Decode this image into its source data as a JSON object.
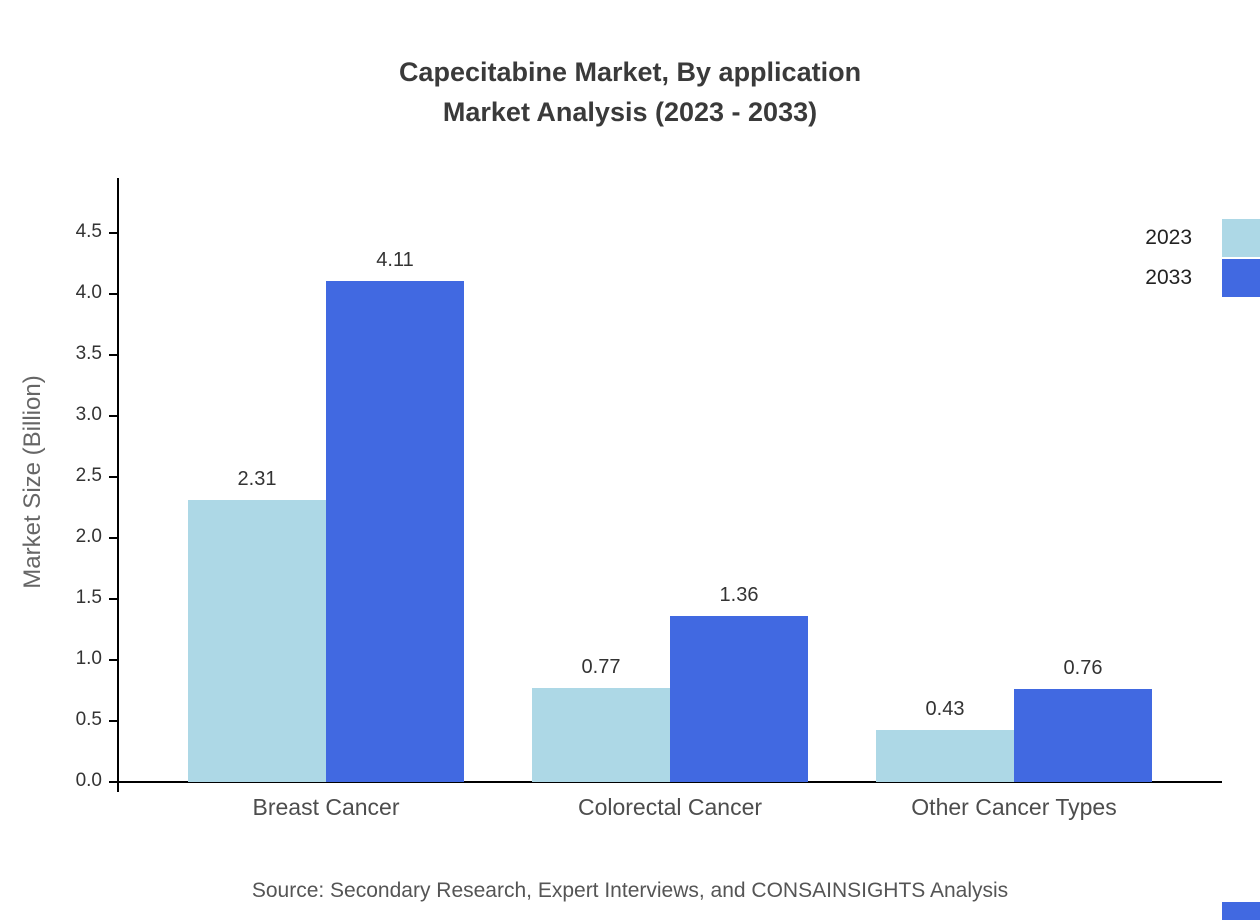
{
  "title": {
    "line1": "Capecitabine Market, By application",
    "line2": "Market Analysis (2023 - 2033)"
  },
  "source": "Source: Secondary Research, Expert Interviews, and CONSAINSIGHTS Analysis",
  "colors": {
    "series_2023": "#ADD8E6",
    "series_2033": "#4169E1",
    "axis": "#000000"
  },
  "chart_data": {
    "type": "bar",
    "title": "Capecitabine Market, By application Market Analysis (2023 - 2033)",
    "categories": [
      "Breast Cancer",
      "Colorectal Cancer",
      "Other Cancer Types"
    ],
    "series": [
      {
        "name": "2023",
        "color": "#ADD8E6",
        "values": [
          2.31,
          0.77,
          0.43
        ]
      },
      {
        "name": "2033",
        "color": "#4169E1",
        "values": [
          4.11,
          1.36,
          0.76
        ]
      }
    ],
    "xlabel": "",
    "ylabel": "Market Size (Billion)",
    "ylim": [
      0,
      4.5
    ],
    "ytick_step": 0.5,
    "grid": false,
    "legend_position": "top-right"
  }
}
